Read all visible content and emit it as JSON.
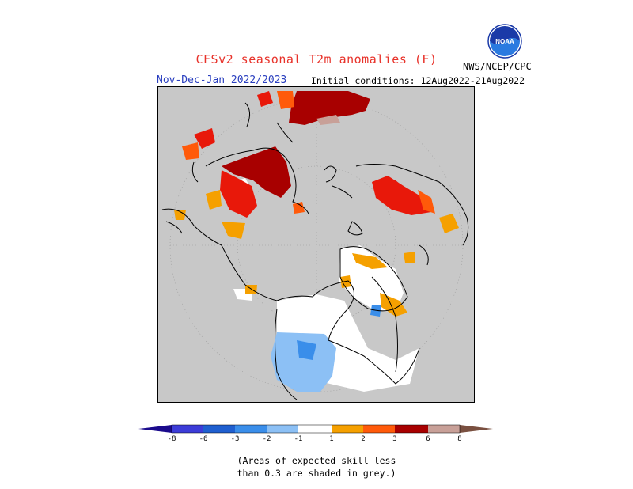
{
  "header": {
    "title": "CFSv2 seasonal T2m anomalies (F)",
    "season": "Nov-Dec-Jan 2022/2023",
    "initial_conditions": "Initial conditions: 12Aug2022-21Aug2022",
    "agency": "NWS/NCEP/CPC",
    "logo_text": "NOAA"
  },
  "colors": {
    "grey_low_skill": "#c8c8c8",
    "land_outline": "#000000",
    "scale": [
      "#1a0a8c",
      "#3c3cd8",
      "#1f5fd0",
      "#3a8eea",
      "#8cc0f5",
      "#ffffff",
      "#f5a000",
      "#ff5a0a",
      "#e8180a",
      "#a80000",
      "#c8a098",
      "#7a5040"
    ]
  },
  "colorbar": {
    "tick_labels": [
      "-8",
      "-6",
      "-3",
      "-2",
      "-1",
      "1",
      "2",
      "3",
      "6",
      "8"
    ]
  },
  "footnote": {
    "line1": "(Areas of expected skill less",
    "line2": "than 0.3 are shaded in grey.)"
  }
}
